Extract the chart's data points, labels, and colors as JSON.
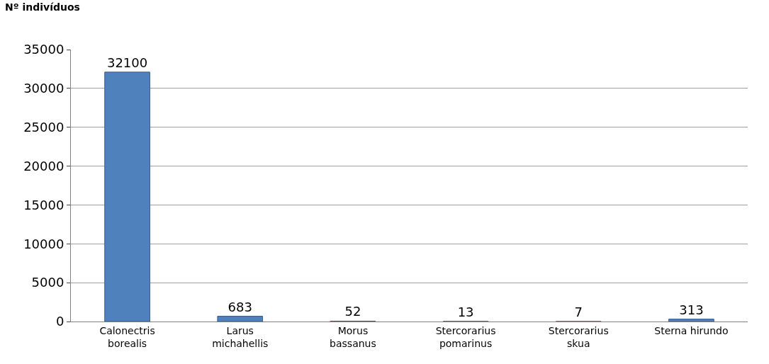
{
  "chart_data": {
    "type": "bar",
    "ylabel": "Nº indivíduos",
    "categories": [
      "Calonectris\nborealis",
      "Larus\nmichahellis",
      "Morus\nbassanus",
      "Stercorarius\npomarinus",
      "Stercorarius\nskua",
      "Sterna hirundo"
    ],
    "values": [
      32100,
      683,
      52,
      13,
      7,
      313
    ],
    "color": "#4f81bd",
    "ylim": [
      0,
      35000
    ],
    "yticks": [
      0,
      5000,
      10000,
      15000,
      20000,
      25000,
      30000,
      35000
    ],
    "grid": "y",
    "data_labels": true
  }
}
